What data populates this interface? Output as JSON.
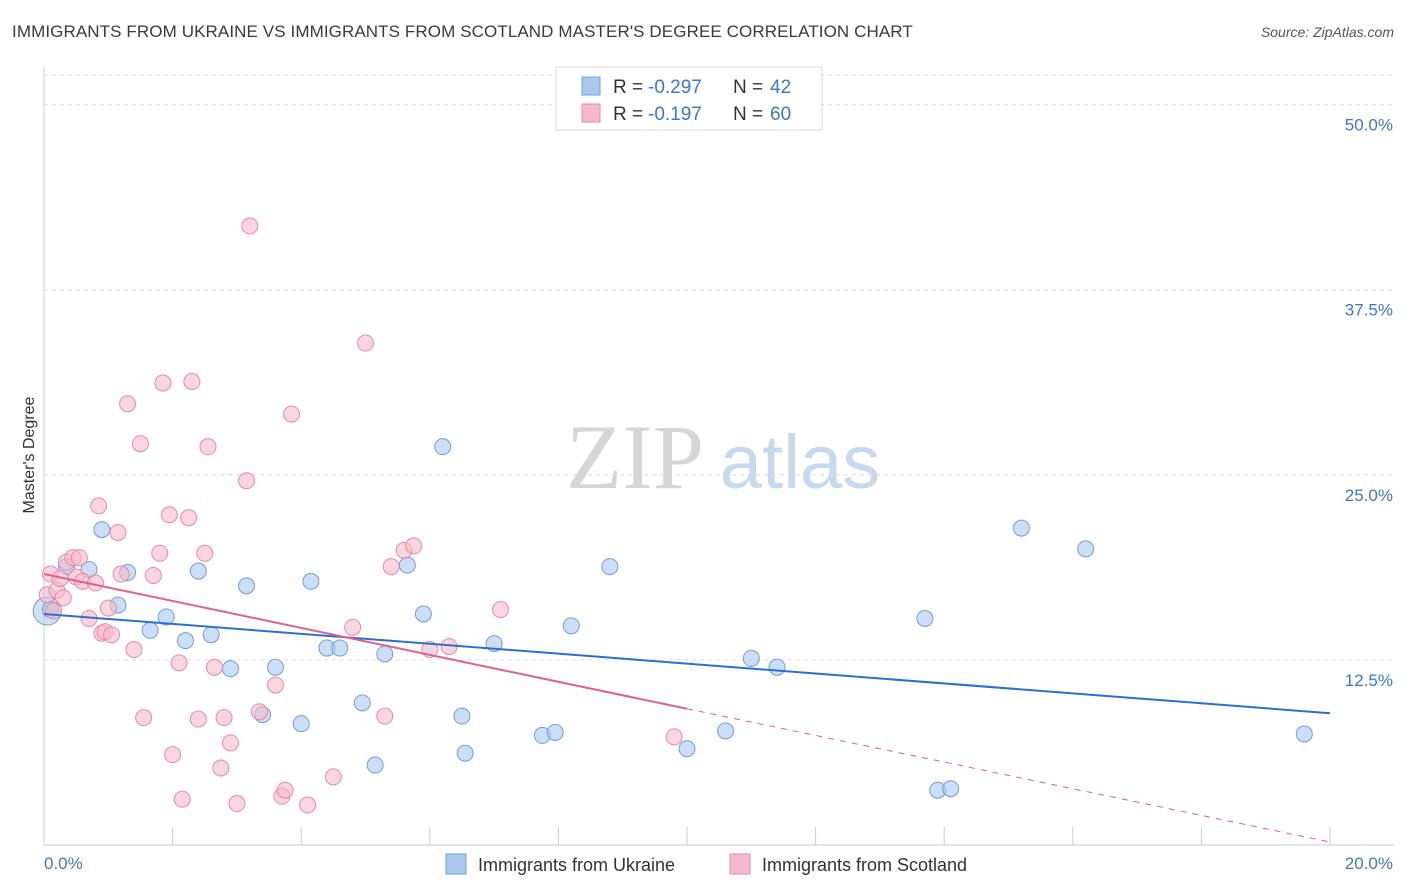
{
  "title": "IMMIGRANTS FROM UKRAINE VS IMMIGRANTS FROM SCOTLAND MASTER'S DEGREE CORRELATION CHART",
  "source": "Source: ZipAtlas.com",
  "watermark": {
    "zip": "ZIP",
    "atlas": "atlas"
  },
  "colors": {
    "ukraine_fill": "#a9c8ef",
    "ukraine_stroke": "#6f9fd8",
    "ukraine_line": "#2d6fcf",
    "scotland_fill": "#f5b9cc",
    "scotland_stroke": "#e88aa8",
    "scotland_line": "#e0608f",
    "axis_label": "#3d77c9",
    "grid": "#dddddd"
  },
  "legend_top": {
    "rows": [
      {
        "r_label": "R =",
        "r_value": "-0.297",
        "n_label": "N =",
        "n_value": "42"
      },
      {
        "r_label": "R =",
        "r_value": "-0.197",
        "n_label": "N =",
        "n_value": "60"
      }
    ]
  },
  "chart_data": {
    "type": "scatter",
    "title": "IMMIGRANTS FROM UKRAINE VS IMMIGRANTS FROM SCOTLAND MASTER'S DEGREE CORRELATION CHART",
    "xlabel": "",
    "ylabel": "Master's Degree",
    "xlim": [
      0,
      20
    ],
    "ylim": [
      0,
      52
    ],
    "x_tick_labels": [
      "0.0%",
      "20.0%"
    ],
    "y_ticks": [
      12.5,
      25.0,
      37.5,
      50.0
    ],
    "y_tick_labels": [
      "12.5%",
      "25.0%",
      "37.5%",
      "50.0%"
    ],
    "grid": true,
    "legend_placement": "bottom-center",
    "series": [
      {
        "name": "Immigrants from Ukraine",
        "color": "#a9c8ef",
        "trend": {
          "x0": 0,
          "y0": 15.6,
          "x1": 20,
          "y1": 8.9
        },
        "points": [
          [
            0.1,
            15.9
          ],
          [
            0.35,
            18.8
          ],
          [
            0.7,
            18.6
          ],
          [
            0.9,
            21.3
          ],
          [
            1.15,
            16.2
          ],
          [
            1.3,
            18.4
          ],
          [
            1.65,
            14.5
          ],
          [
            1.9,
            15.4
          ],
          [
            2.2,
            13.8
          ],
          [
            2.4,
            18.5
          ],
          [
            2.6,
            14.2
          ],
          [
            2.9,
            11.9
          ],
          [
            3.15,
            17.5
          ],
          [
            3.4,
            8.8
          ],
          [
            3.6,
            12.0
          ],
          [
            4.0,
            8.2
          ],
          [
            4.15,
            17.8
          ],
          [
            4.4,
            13.3
          ],
          [
            4.6,
            13.3
          ],
          [
            4.95,
            9.6
          ],
          [
            5.15,
            5.4
          ],
          [
            5.3,
            12.9
          ],
          [
            5.65,
            18.9
          ],
          [
            5.9,
            15.6
          ],
          [
            6.2,
            26.9
          ],
          [
            6.5,
            8.7
          ],
          [
            6.55,
            6.2
          ],
          [
            7.0,
            13.6
          ],
          [
            7.75,
            7.4
          ],
          [
            7.95,
            7.6
          ],
          [
            8.2,
            14.8
          ],
          [
            8.8,
            18.8
          ],
          [
            10.0,
            6.5
          ],
          [
            10.6,
            7.7
          ],
          [
            11.0,
            12.6
          ],
          [
            11.4,
            12.0
          ],
          [
            13.7,
            15.3
          ],
          [
            13.9,
            3.7
          ],
          [
            14.1,
            3.8
          ],
          [
            15.2,
            21.4
          ],
          [
            16.2,
            20.0
          ],
          [
            19.6,
            7.5
          ]
        ]
      },
      {
        "name": "Immigrants from Scotland",
        "color": "#f5b9cc",
        "trend": {
          "x0": 0,
          "y0": 18.3,
          "x1": 10.0,
          "y1": 9.2,
          "dash_x1": 20,
          "dash_y1": 0.2
        },
        "points": [
          [
            0.05,
            16.9
          ],
          [
            0.1,
            18.3
          ],
          [
            0.15,
            15.8
          ],
          [
            0.2,
            17.2
          ],
          [
            0.25,
            18.0
          ],
          [
            0.3,
            16.7
          ],
          [
            0.35,
            19.1
          ],
          [
            0.45,
            19.4
          ],
          [
            0.5,
            18.1
          ],
          [
            0.55,
            19.4
          ],
          [
            0.6,
            17.8
          ],
          [
            0.7,
            15.3
          ],
          [
            0.8,
            17.7
          ],
          [
            0.85,
            22.9
          ],
          [
            0.9,
            14.3
          ],
          [
            0.95,
            14.4
          ],
          [
            1.0,
            16.0
          ],
          [
            1.05,
            14.2
          ],
          [
            1.15,
            21.1
          ],
          [
            1.2,
            18.3
          ],
          [
            1.3,
            29.8
          ],
          [
            1.4,
            13.2
          ],
          [
            1.5,
            27.1
          ],
          [
            1.55,
            8.6
          ],
          [
            1.7,
            18.2
          ],
          [
            1.8,
            19.7
          ],
          [
            1.85,
            31.2
          ],
          [
            1.95,
            22.3
          ],
          [
            2.0,
            6.1
          ],
          [
            2.1,
            12.3
          ],
          [
            2.15,
            3.1
          ],
          [
            2.25,
            22.1
          ],
          [
            2.3,
            31.3
          ],
          [
            2.4,
            8.5
          ],
          [
            2.5,
            19.7
          ],
          [
            2.55,
            26.9
          ],
          [
            2.65,
            12.0
          ],
          [
            2.75,
            5.2
          ],
          [
            2.8,
            8.6
          ],
          [
            2.9,
            6.9
          ],
          [
            3.0,
            2.8
          ],
          [
            3.15,
            24.6
          ],
          [
            3.2,
            41.8
          ],
          [
            3.35,
            9.0
          ],
          [
            3.6,
            10.8
          ],
          [
            3.7,
            3.3
          ],
          [
            3.75,
            3.7
          ],
          [
            3.85,
            29.1
          ],
          [
            4.1,
            2.7
          ],
          [
            4.5,
            4.6
          ],
          [
            4.8,
            14.7
          ],
          [
            5.0,
            33.9
          ],
          [
            5.3,
            8.7
          ],
          [
            5.4,
            18.8
          ],
          [
            5.6,
            19.9
          ],
          [
            5.75,
            20.2
          ],
          [
            6.0,
            13.2
          ],
          [
            6.3,
            13.4
          ],
          [
            7.1,
            15.9
          ],
          [
            9.8,
            7.3
          ]
        ]
      }
    ]
  },
  "legend_bottom": {
    "items": [
      {
        "label": "Immigrants from Ukraine"
      },
      {
        "label": "Immigrants from Scotland"
      }
    ]
  }
}
